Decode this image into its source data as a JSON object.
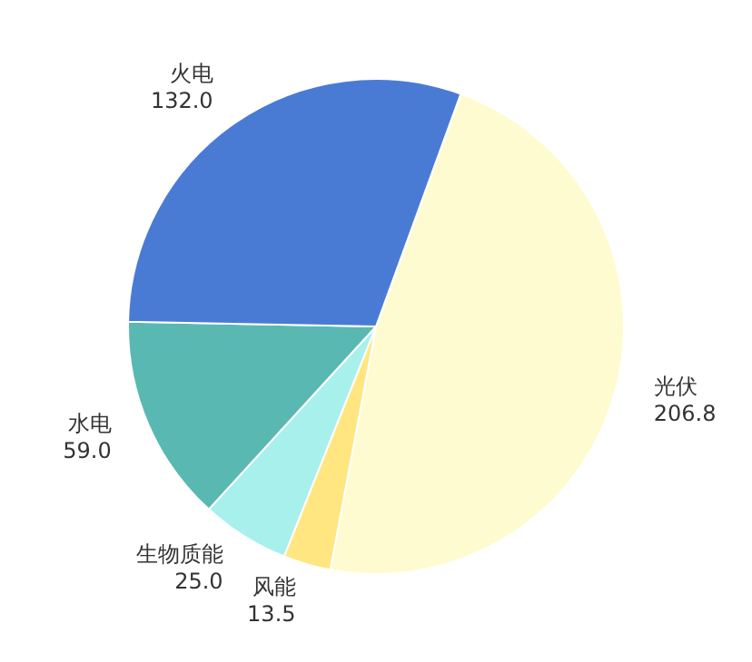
{
  "chart_data": {
    "type": "pie",
    "categories": [
      "光伏",
      "风能",
      "生物质能",
      "水电",
      "火电"
    ],
    "values": [
      206.8,
      13.5,
      25.0,
      59.0,
      132.0
    ],
    "value_labels": [
      "206.8",
      "13.5",
      "25.0",
      "59.0",
      "132.0"
    ],
    "colors": [
      "#fffbd0",
      "#ffe680",
      "#a8f0ec",
      "#5ab8b2",
      "#4a7bd4"
    ]
  }
}
